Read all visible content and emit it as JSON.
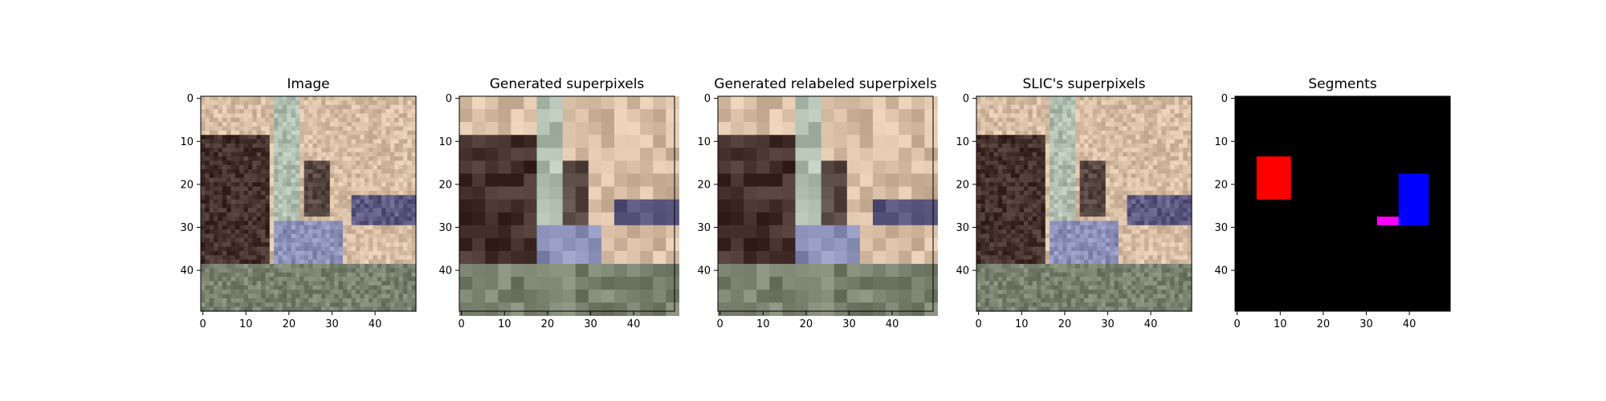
{
  "chart_data": [
    {
      "type": "heatmap",
      "title": "Image",
      "content": "photo",
      "xlim": [
        0,
        50
      ],
      "ylim": [
        50,
        0
      ],
      "xticks": [
        0,
        10,
        20,
        30,
        40
      ],
      "yticks": [
        0,
        10,
        20,
        30,
        40
      ]
    },
    {
      "type": "heatmap",
      "title": "Generated superpixels",
      "content": "superpixels",
      "xlim": [
        0,
        50
      ],
      "ylim": [
        50,
        0
      ],
      "xticks": [
        0,
        10,
        20,
        30,
        40
      ],
      "yticks": [
        0,
        10,
        20,
        30,
        40
      ]
    },
    {
      "type": "heatmap",
      "title": "Generated relabeled superpixels",
      "content": "superpixels",
      "xlim": [
        0,
        50
      ],
      "ylim": [
        50,
        0
      ],
      "xticks": [
        0,
        10,
        20,
        30,
        40
      ],
      "yticks": [
        0,
        10,
        20,
        30,
        40
      ]
    },
    {
      "type": "heatmap",
      "title": "SLIC's superpixels",
      "content": "photo",
      "xlim": [
        0,
        50
      ],
      "ylim": [
        50,
        0
      ],
      "xticks": [
        0,
        10,
        20,
        30,
        40
      ],
      "yticks": [
        0,
        10,
        20,
        30,
        40
      ]
    },
    {
      "type": "heatmap",
      "title": "Segments",
      "content": "segments",
      "xlim": [
        0,
        50
      ],
      "ylim": [
        50,
        0
      ],
      "xticks": [
        0,
        10,
        20,
        30,
        40
      ],
      "yticks": [
        0,
        10,
        20,
        30,
        40
      ],
      "background_color": "#000000",
      "segments": [
        {
          "name": "red",
          "color": "#ff0000",
          "x": [
            5,
            13
          ],
          "y": [
            14,
            24
          ]
        },
        {
          "name": "magenta",
          "color": "#ff00ff",
          "x": [
            33,
            40
          ],
          "y": [
            28,
            30
          ]
        },
        {
          "name": "blue",
          "color": "#0000ff",
          "x": [
            38,
            45
          ],
          "y": [
            18,
            30
          ]
        }
      ]
    }
  ]
}
